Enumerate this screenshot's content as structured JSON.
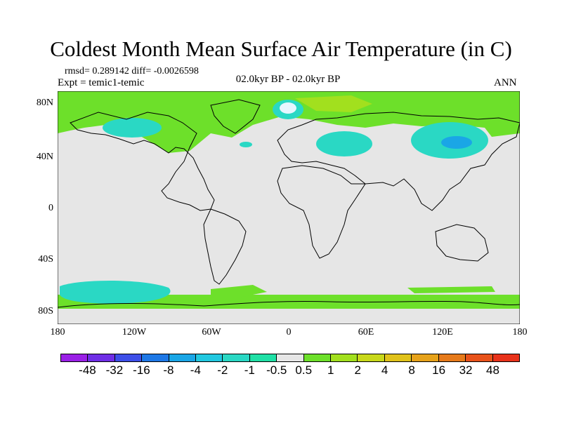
{
  "title": "Coldest Month Mean Surface Air Temperature (in C)",
  "stats": "rmsd= 0.289142 diff= -0.0026598",
  "experiment": "Expt = temic1-temic",
  "period": "02.0kyr BP - 02.0kyr BP",
  "season": "ANN",
  "y_axis_labels": [
    "80N",
    "40N",
    "0",
    "40S",
    "80S"
  ],
  "x_axis_labels": [
    "180",
    "120W",
    "60W",
    "0",
    "60E",
    "120E",
    "180"
  ],
  "colorbar": {
    "labels": [
      "-48",
      "-32",
      "-16",
      "-8",
      "-4",
      "-2",
      "-1",
      "-0.5",
      "0.5",
      "1",
      "2",
      "4",
      "8",
      "16",
      "32",
      "48"
    ],
    "colors": [
      "#9a20e6",
      "#6f2ee6",
      "#3d4fe8",
      "#1e78e6",
      "#1aa6e6",
      "#22c8e0",
      "#2ad8c4",
      "#20e0a6",
      "#e6e6e6",
      "#6de02a",
      "#a2e01e",
      "#c8d81a",
      "#e0c21a",
      "#e6a21a",
      "#e67a1a",
      "#e8521a",
      "#e8321a"
    ]
  },
  "map": {
    "lat_range": [
      -90,
      90
    ],
    "lon_range": [
      -180,
      180
    ],
    "background_color": "#e6e6e6"
  }
}
